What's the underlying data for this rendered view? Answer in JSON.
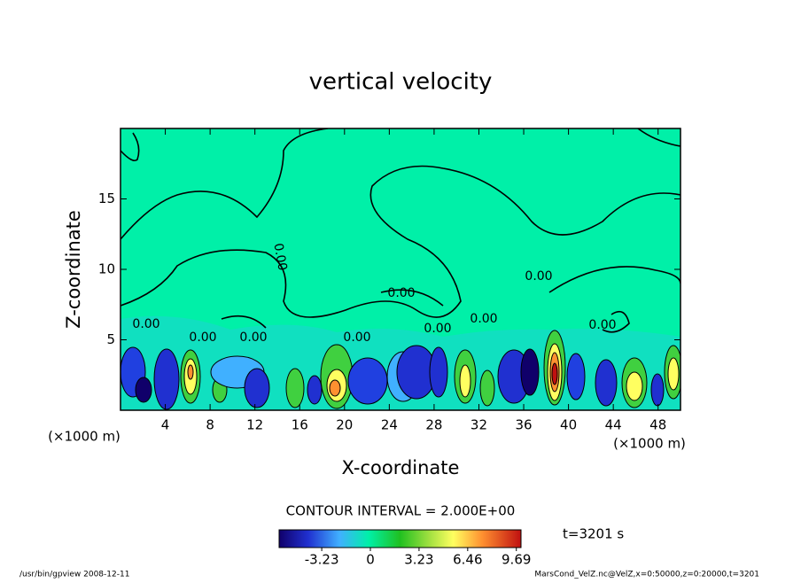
{
  "chart_data": {
    "type": "contour",
    "title": "vertical velocity",
    "x_label": "X-coordinate",
    "y_label": "Z-coordinate",
    "x_unit": "(×1000 m)",
    "y_unit": "(×1000 m)",
    "xlim": [
      0,
      50
    ],
    "ylim": [
      0,
      20
    ],
    "xticks": [
      4,
      8,
      12,
      16,
      20,
      24,
      28,
      32,
      36,
      40,
      44,
      48
    ],
    "yticks": [
      5,
      10,
      15
    ],
    "contour_labels": [
      "0.00",
      "0.00",
      "0.00",
      "0.00",
      "0.00",
      "0.00",
      "0.00",
      "0.00",
      "0.00",
      "0.00"
    ],
    "contour_interval": "CONTOUR INTERVAL = 2.000E+00",
    "time_label": "t=3201 s",
    "colorbar": {
      "clim": [
        -6.06,
        10
      ],
      "ticks": [
        -3.23,
        0,
        3.23,
        6.46,
        9.69
      ]
    },
    "footer_left": "/usr/bin/gpview   2008-12-11",
    "footer_right": "MarsCond_VelZ.nc@VelZ,x=0:50000,z=0:20000,t=3201"
  }
}
